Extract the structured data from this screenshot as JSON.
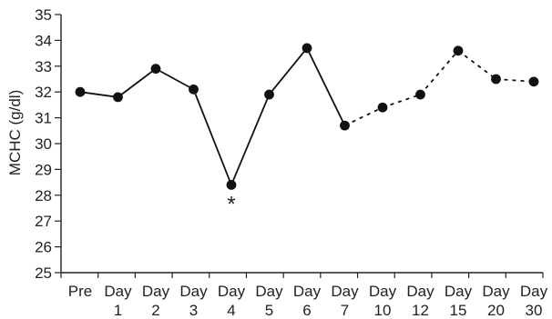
{
  "chart_data": {
    "type": "line",
    "ylabel": "MCHC (g/dl)",
    "ylim": [
      25,
      35
    ],
    "y_ticks": [
      25,
      26,
      27,
      28,
      29,
      30,
      31,
      32,
      33,
      34,
      35
    ],
    "categories": [
      {
        "top": "Pre",
        "bottom": ""
      },
      {
        "top": "Day",
        "bottom": "1"
      },
      {
        "top": "Day",
        "bottom": "2"
      },
      {
        "top": "Day",
        "bottom": "3"
      },
      {
        "top": "Day",
        "bottom": "4"
      },
      {
        "top": "Day",
        "bottom": "5"
      },
      {
        "top": "Day",
        "bottom": "6"
      },
      {
        "top": "Day",
        "bottom": "7"
      },
      {
        "top": "Day",
        "bottom": "10"
      },
      {
        "top": "Day",
        "bottom": "12"
      },
      {
        "top": "Day",
        "bottom": "15"
      },
      {
        "top": "Day",
        "bottom": "20"
      },
      {
        "top": "Day",
        "bottom": "30"
      }
    ],
    "values": [
      32.0,
      31.8,
      32.9,
      32.1,
      28.4,
      31.9,
      33.7,
      30.7,
      31.4,
      31.9,
      33.6,
      32.5,
      32.4
    ],
    "line_style": [
      "solid",
      "solid",
      "solid",
      "solid",
      "solid",
      "solid",
      "solid",
      "dashed",
      "dashed",
      "dashed",
      "dashed",
      "dashed"
    ],
    "annotations": [
      {
        "category_index": 4,
        "text": "*"
      }
    ],
    "grid": false,
    "legend": "none"
  }
}
